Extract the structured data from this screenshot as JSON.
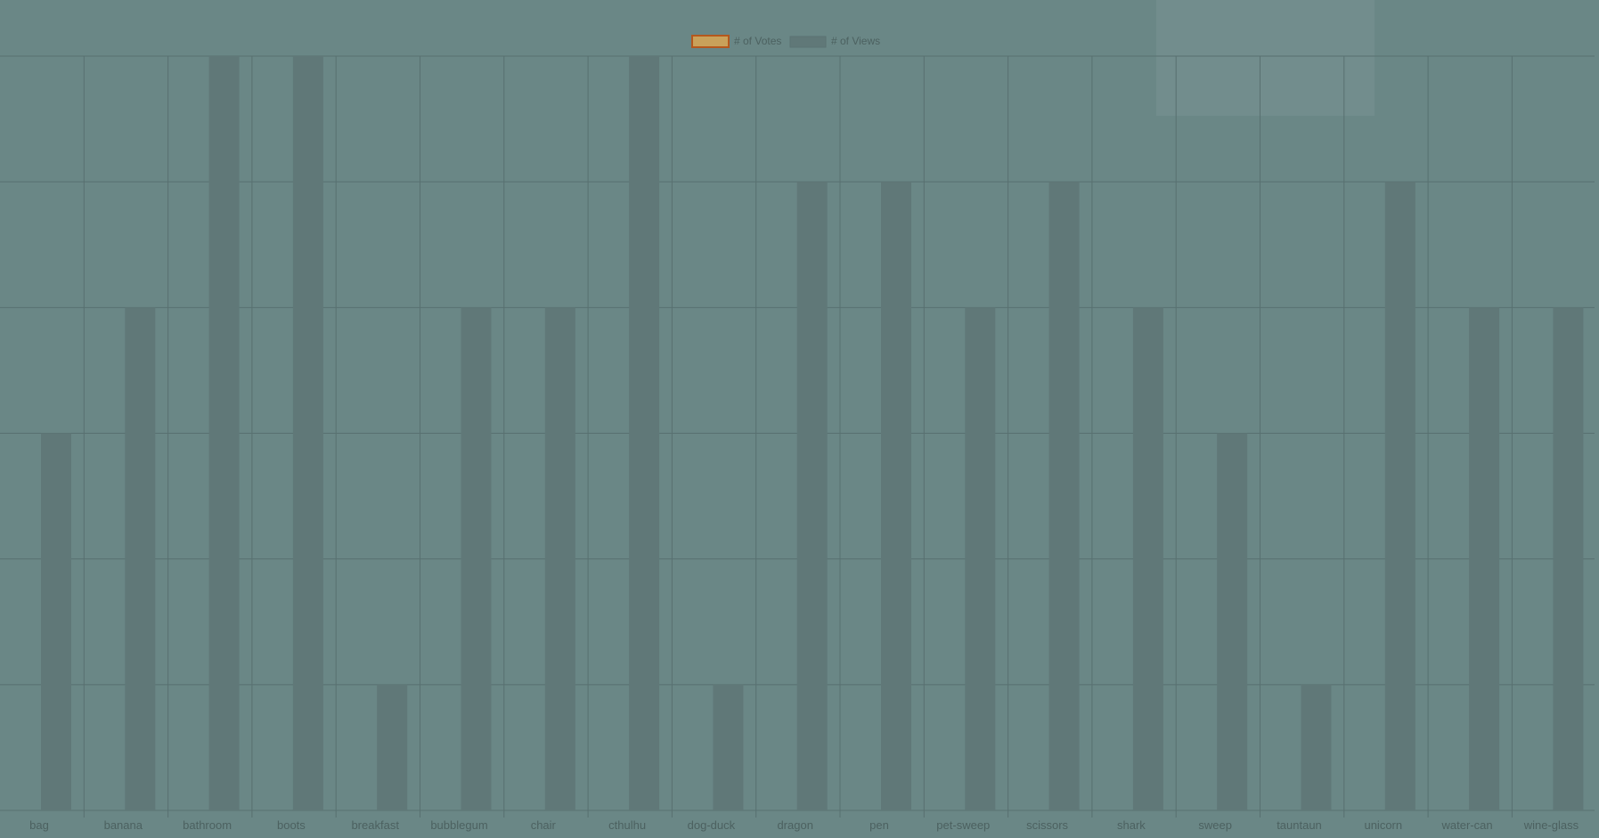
{
  "chart_data": {
    "type": "bar",
    "title": "",
    "xlabel": "",
    "ylabel": "",
    "categories": [
      "bag",
      "banana",
      "bathroom",
      "boots",
      "breakfast",
      "bubblegum",
      "chair",
      "cthulhu",
      "dog-duck",
      "dragon",
      "pen",
      "pet-sweep",
      "scissors",
      "shark",
      "sweep",
      "tauntaun",
      "unicorn",
      "water-can",
      "wine-glass"
    ],
    "ylim": [
      0,
      6
    ],
    "grid": true,
    "legend_position": "top-center",
    "series": [
      {
        "name": "# of Votes",
        "values": [
          0,
          0,
          0,
          0,
          0,
          0,
          0,
          0,
          0,
          0,
          0,
          0,
          0,
          0,
          0,
          0,
          0,
          0,
          0
        ],
        "fill": "#c9a15a",
        "stroke": "#b5581d"
      },
      {
        "name": "# of Views",
        "values": [
          3,
          4,
          6,
          6,
          1,
          4,
          4,
          6,
          1,
          5,
          5,
          4,
          5,
          4,
          3,
          1,
          5,
          4,
          4
        ],
        "fill": "#607878",
        "stroke": "#5a7272"
      }
    ]
  },
  "colors": {
    "background": "#6a8786",
    "grid": "#587070",
    "text": "#4c6160",
    "overlay": "#748f8e"
  }
}
